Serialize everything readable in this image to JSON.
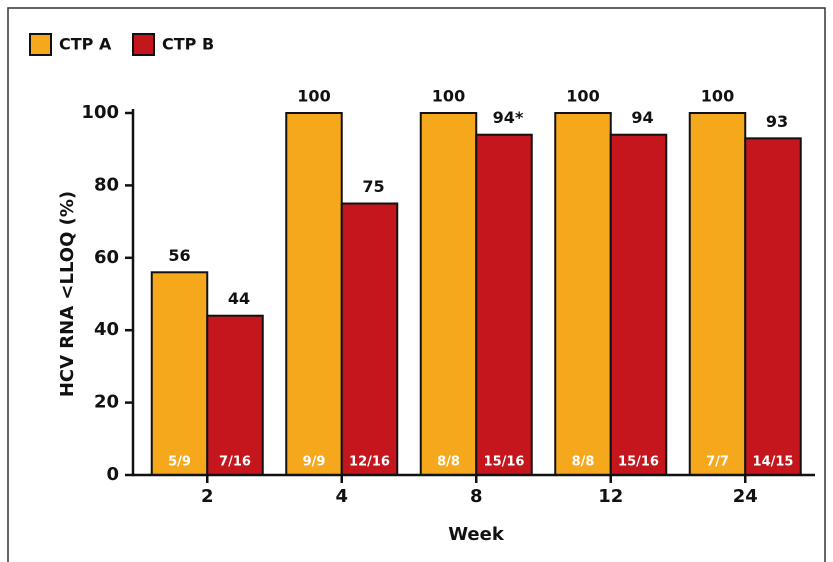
{
  "chart_data": {
    "type": "bar",
    "x_label": "Week",
    "y_label": "HCV RNA <LLOQ (%)",
    "categories": [
      "2",
      "4",
      "8",
      "12",
      "24"
    ],
    "series": [
      {
        "name": "CTP A",
        "color": "#f5a81c",
        "values": [
          56,
          100,
          100,
          100,
          100
        ],
        "counts": [
          "5/9",
          "9/9",
          "8/8",
          "8/8",
          "7/7"
        ]
      },
      {
        "name": "CTP B",
        "color": "#c4161c",
        "values": [
          44,
          75,
          94,
          94,
          93
        ],
        "value_labels": [
          "44",
          "75",
          "94*",
          "94",
          "93"
        ],
        "counts": [
          "7/16",
          "12/16",
          "15/16",
          "15/16",
          "14/15"
        ]
      }
    ],
    "ylim": [
      0,
      100
    ],
    "yticks": [
      0,
      20,
      40,
      60,
      80,
      100
    ],
    "legend": "top-left"
  }
}
